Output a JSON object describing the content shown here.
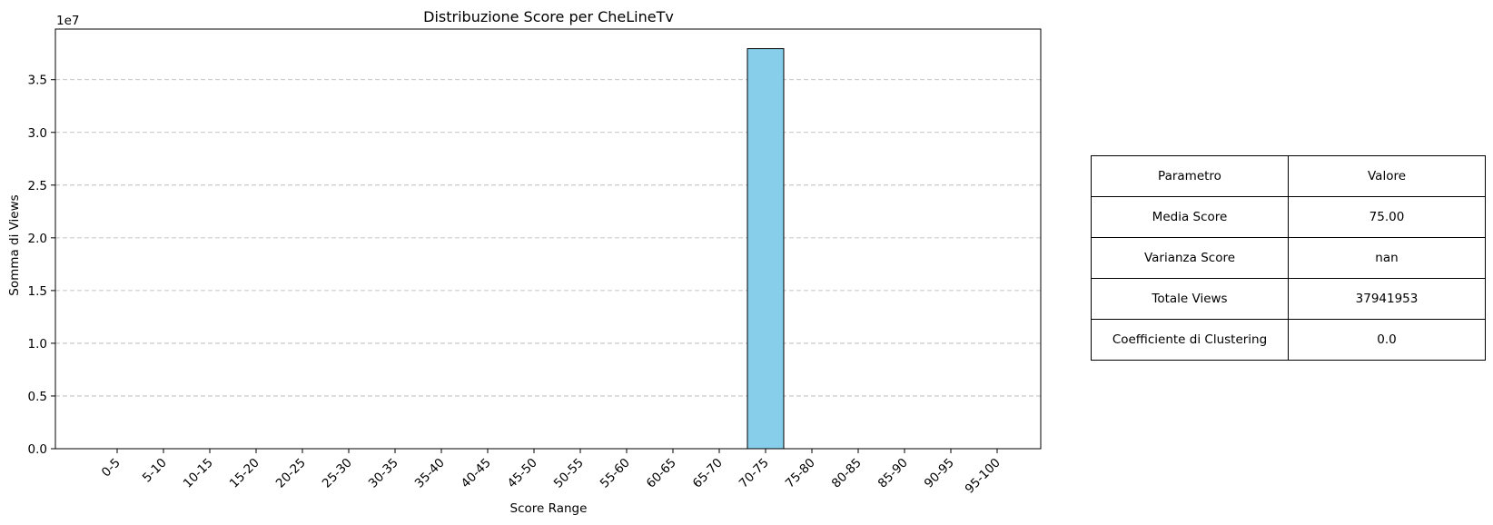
{
  "chart_data": {
    "type": "bar",
    "title": "Distribuzione Score per CheLineTv",
    "xlabel": "Score Range",
    "ylabel": "Somma di Views",
    "y_offset_label": "1e7",
    "categories": [
      "0-5",
      "5-10",
      "10-15",
      "15-20",
      "20-25",
      "25-30",
      "30-35",
      "35-40",
      "40-45",
      "45-50",
      "50-55",
      "55-60",
      "60-65",
      "65-70",
      "70-75",
      "75-80",
      "80-85",
      "85-90",
      "90-95",
      "95-100"
    ],
    "values": [
      0,
      0,
      0,
      0,
      0,
      0,
      0,
      0,
      0,
      0,
      0,
      0,
      0,
      0,
      37941953,
      0,
      0,
      0,
      0,
      0
    ],
    "ylim": [
      0,
      39800000
    ],
    "yticks": [
      0,
      5000000,
      10000000,
      15000000,
      20000000,
      25000000,
      30000000,
      35000000
    ],
    "ytick_labels": [
      "0.0",
      "0.5",
      "1.0",
      "1.5",
      "2.0",
      "2.5",
      "3.0",
      "3.5"
    ],
    "grid": "y-dashed",
    "bar_color": "#87ceeb",
    "edge_color": "#000000"
  },
  "table": {
    "header": [
      "Parametro",
      "Valore"
    ],
    "rows": [
      [
        "Media Score",
        "75.00"
      ],
      [
        "Varianza Score",
        "nan"
      ],
      [
        "Totale Views",
        "37941953"
      ],
      [
        "Coefficiente di Clustering",
        "0.0"
      ]
    ]
  }
}
